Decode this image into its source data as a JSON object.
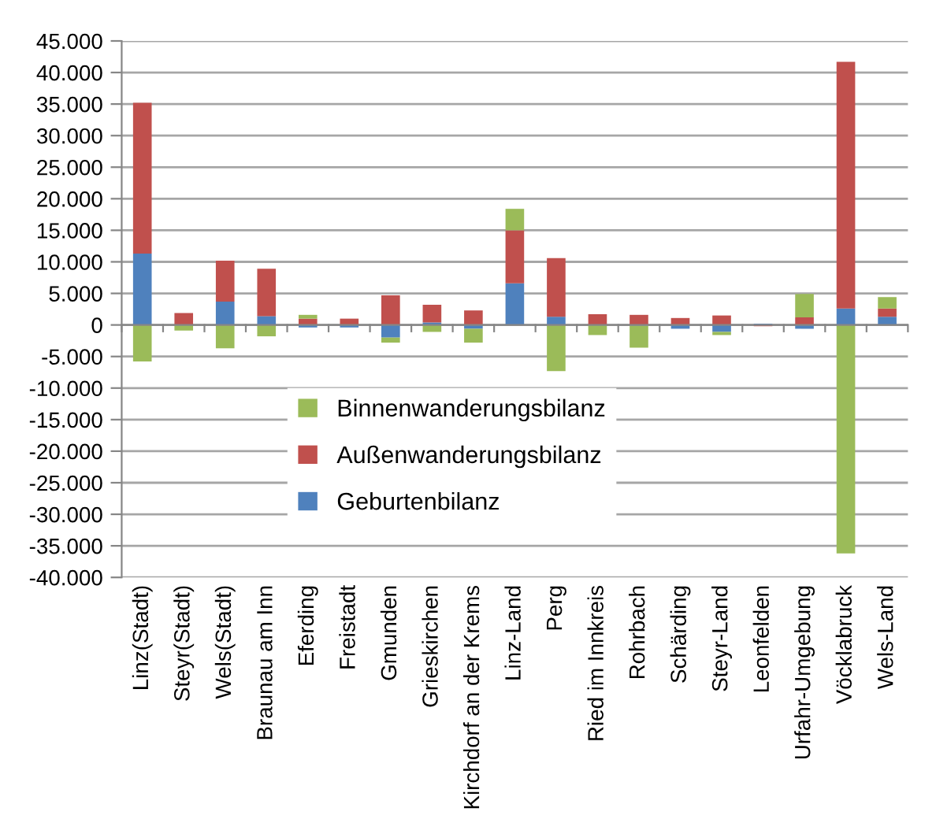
{
  "chart_data": {
    "type": "bar",
    "stacked": true,
    "categories": [
      "Linz(Stadt)",
      "Steyr(Stadt)",
      "Wels(Stadt)",
      "Braunau am Inn",
      "Eferding",
      "Freistadt",
      "Gmunden",
      "Grieskirchen",
      "Kirchdorf an der Krems",
      "Linz-Land",
      "Perg",
      "Ried im Innkreis",
      "Rohrbach",
      "Schärding",
      "Steyr-Land",
      "Leonfelden",
      "Urfahr-Umgebung",
      "Vöcklabruck",
      "Wels-Land"
    ],
    "series": [
      {
        "name": "Geburtenbilanz",
        "color": "#4f81bd",
        "values": [
          11300,
          null,
          3700,
          1400,
          -400,
          -400,
          -2000,
          400,
          -600,
          6600,
          1300,
          null,
          -100,
          -600,
          -1100,
          200,
          -600,
          2600,
          1300
        ]
      },
      {
        "name": "Außenwanderungsbilanz",
        "color": "#c0504d",
        "values": [
          23900,
          1900,
          6500,
          7500,
          1000,
          1000,
          4700,
          2800,
          2300,
          8400,
          9300,
          1700,
          1600,
          1100,
          1500,
          -200,
          1200,
          39100,
          1300
        ]
      },
      {
        "name": "Binnenwanderungsbilanz",
        "color": "#9bbb59",
        "values": [
          -5800,
          -900,
          -3700,
          -1800,
          600,
          0,
          -800,
          -1100,
          -2200,
          3400,
          -7300,
          -1600,
          -3500,
          0,
          -500,
          0,
          3700,
          -36200,
          1800
        ]
      }
    ],
    "ylim": [
      -40000,
      45000
    ],
    "yticks": [
      {
        "value": -40000,
        "label": "-40.000"
      },
      {
        "value": -35000,
        "label": "-35.000"
      },
      {
        "value": -30000,
        "label": "-30.000"
      },
      {
        "value": -25000,
        "label": "-25.000"
      },
      {
        "value": -20000,
        "label": "-20.000"
      },
      {
        "value": -15000,
        "label": "-15.000"
      },
      {
        "value": -10000,
        "label": "-10.000"
      },
      {
        "value": -5000,
        "label": "-5.000"
      },
      0,
      {
        "value": 5000,
        "label": "5.000"
      },
      {
        "value": 10000,
        "label": "10.000"
      },
      {
        "value": 15000,
        "label": "15.000"
      },
      {
        "value": 20000,
        "label": "20.000"
      },
      {
        "value": 25000,
        "label": "25.000"
      },
      {
        "value": 30000,
        "label": "30.000"
      },
      {
        "value": 35000,
        "label": "35.000"
      },
      {
        "value": 40000,
        "label": "40.000"
      },
      {
        "value": 45000,
        "label": "45.000"
      }
    ],
    "grid": "y",
    "legend": "center"
  }
}
